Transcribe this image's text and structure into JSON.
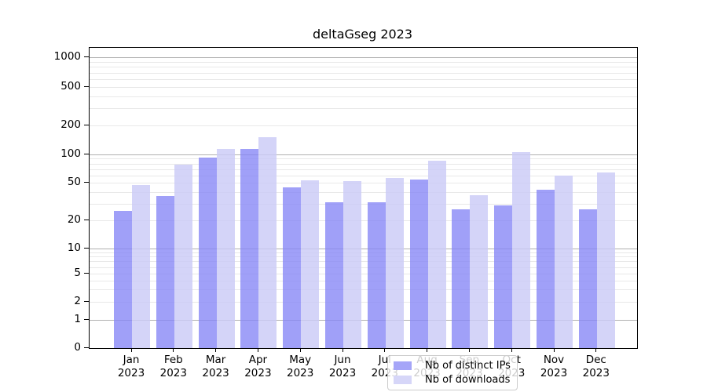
{
  "chart_data": {
    "type": "bar",
    "title": "deltaGseg 2023",
    "categories": [
      "Jan 2023",
      "Feb 2023",
      "Mar 2023",
      "Apr 2023",
      "May 2023",
      "Jun 2023",
      "Jul 2023",
      "Aug 2023",
      "Sep 2023",
      "Oct 2023",
      "Nov 2023",
      "Dec 2023"
    ],
    "series": [
      {
        "name": "Nb of distinct IPs",
        "values": [
          25,
          36,
          92,
          114,
          45,
          31,
          31,
          54,
          26,
          29,
          42,
          26
        ]
      },
      {
        "name": "Nb of downloads",
        "values": [
          47,
          78,
          113,
          150,
          53,
          52,
          56,
          85,
          37,
          106,
          59,
          64
        ]
      }
    ],
    "xlabel": "",
    "ylabel": "",
    "yscale": "log-like (linear segment below 1)",
    "yticks": [
      0,
      1,
      2,
      5,
      10,
      20,
      50,
      100,
      200,
      500,
      1000
    ],
    "ylim": [
      0,
      1000
    ],
    "grid": "horizontal major (decades) + minor log gridlines",
    "legend_position": "lower center inside plot"
  },
  "colors": {
    "ips_bar": "rgba(133,133,246,0.78)",
    "downloads_bar": "rgba(203,203,246,0.82)",
    "ips_swatch": "#a5a5f8",
    "downloads_swatch": "#d6d6f8",
    "grid_major": "#b0b0b0",
    "grid_minor": "#e8e8e8",
    "spine": "#000000",
    "text": "#000000",
    "legend_border": "#cccccc",
    "legend_bg": "rgba(255,255,255,0.8)"
  }
}
